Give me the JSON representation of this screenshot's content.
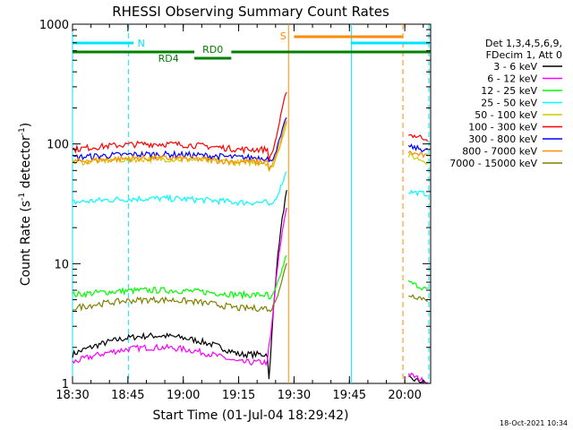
{
  "chart_data": {
    "type": "line",
    "title": "RHESSI Observing Summary Count Rates",
    "xlabel": "Start Time (01-Jul-04 18:29:42)",
    "ylabel_main": "Count Rate (s",
    "ylabel_sup1": "-1",
    "ylabel_mid": " detector",
    "ylabel_sup2": "-1",
    "ylabel_end": ")",
    "y_scale": "log",
    "ylim": [
      1,
      1000
    ],
    "xlim_minutes": [
      0,
      97
    ],
    "x_ticks": [
      {
        "m": 0,
        "label": "18:30"
      },
      {
        "m": 15,
        "label": "18:45"
      },
      {
        "m": 30,
        "label": "19:00"
      },
      {
        "m": 45,
        "label": "19:15"
      },
      {
        "m": 60,
        "label": "19:30"
      },
      {
        "m": 75,
        "label": "19:45"
      },
      {
        "m": 90,
        "label": "20:00"
      }
    ],
    "y_ticks": [
      {
        "v": 1,
        "label": "1"
      },
      {
        "v": 10,
        "label": "10"
      },
      {
        "v": 100,
        "label": "100"
      },
      {
        "v": 1000,
        "label": "1000"
      }
    ],
    "legend_header": [
      "Det 1,3,4,5,6,9,",
      "FDecim 1, Att 0"
    ],
    "footer_date": "18-Oct-2021 10:34",
    "flag_labels": {
      "night": "N",
      "saa": "S",
      "rd0": "RD0",
      "rd4": "RD4"
    },
    "colors": {
      "night": "#00e5ff",
      "saa": "#ff8c00",
      "rd": "#008000"
    },
    "series": [
      {
        "name": "3 - 6 keV",
        "color": "#000000",
        "pre": [
          1,
          2.5
        ],
        "flare": [
          1,
          40
        ],
        "post": [
          1,
          1.1
        ]
      },
      {
        "name": "6 - 12 keV",
        "color": "#ff00ff",
        "pre": [
          1,
          2
        ],
        "flare": [
          2,
          30
        ],
        "post": [
          1,
          1.2
        ]
      },
      {
        "name": "12 - 25 keV",
        "color": "#00ff00",
        "pre": [
          5,
          6
        ],
        "flare": [
          5,
          12
        ],
        "post": [
          6,
          7
        ]
      },
      {
        "name": "25 - 50 keV",
        "color": "#00ffff",
        "pre": [
          30,
          35
        ],
        "flare": [
          30,
          60
        ],
        "post": [
          38,
          40
        ]
      },
      {
        "name": "50 - 100 keV",
        "color": "#cccc00",
        "pre": [
          65,
          75
        ],
        "flare": [
          60,
          150
        ],
        "post": [
          70,
          80
        ]
      },
      {
        "name": "100 - 300 keV",
        "color": "#ff0000",
        "pre": [
          80,
          100
        ],
        "flare": [
          75,
          280
        ],
        "post": [
          110,
          120
        ]
      },
      {
        "name": "300 - 800 keV",
        "color": "#0000ff",
        "pre": [
          72,
          82
        ],
        "flare": [
          70,
          170
        ],
        "post": [
          88,
          95
        ]
      },
      {
        "name": "800 - 7000 keV",
        "color": "#ff8c00",
        "pre": [
          66,
          76
        ],
        "flare": [
          62,
          160
        ],
        "post": [
          78,
          85
        ]
      },
      {
        "name": "7000 - 15000 keV",
        "color": "#808000",
        "pre": [
          3.5,
          5
        ],
        "flare": [
          4,
          10
        ],
        "post": [
          5,
          5.5
        ]
      }
    ]
  }
}
